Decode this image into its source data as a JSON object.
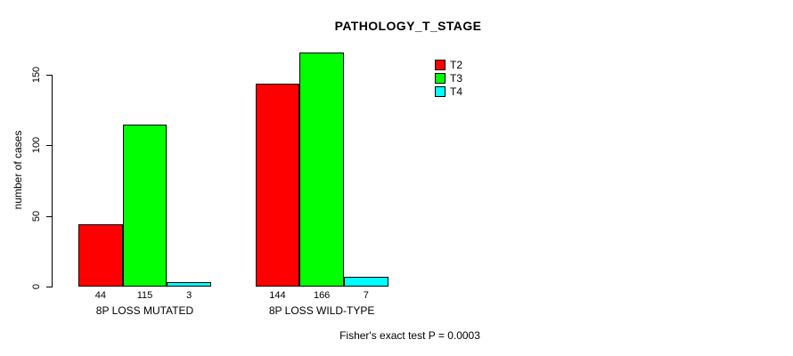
{
  "chart_data": {
    "type": "bar",
    "title": "PATHOLOGY_T_STAGE",
    "ylabel": "number of cases",
    "xlabel": "",
    "categories": [
      "8P LOSS MUTATED",
      "8P LOSS WILD-TYPE"
    ],
    "series": [
      {
        "name": "T2",
        "color": "#ff0000",
        "values": [
          44,
          144
        ]
      },
      {
        "name": "T3",
        "color": "#00ff00",
        "values": [
          115,
          166
        ]
      },
      {
        "name": "T4",
        "color": "#00ffff",
        "values": [
          3,
          7
        ]
      }
    ],
    "yticks": [
      0,
      50,
      100,
      150
    ],
    "ylim": [
      0,
      170
    ],
    "grid": false,
    "show_bar_values": true,
    "legend_position": "top-right",
    "annotation": "Fisher's exact test P = 0.0003"
  }
}
